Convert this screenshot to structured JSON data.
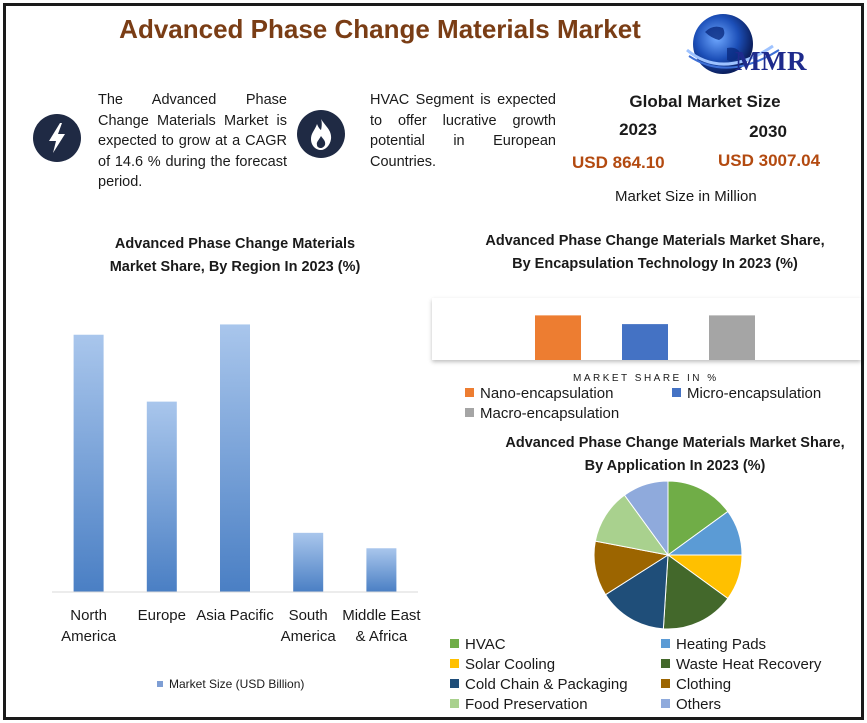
{
  "title": "Advanced Phase Change Materials Market",
  "logo": {
    "text": "MMR"
  },
  "info": {
    "cagr_text": "The Advanced Phase Change Materials Market is expected to grow at a CAGR of 14.6 % during the forecast period.",
    "hvac_text": "HVAC Segment is expected to offer lucrative growth potential in European Countries."
  },
  "global_market": {
    "heading": "Global Market Size",
    "year1": "2023",
    "year2": "2030",
    "value1": "USD 864.10",
    "value2": "USD 3007.04",
    "caption": "Market Size in Million"
  },
  "colors": {
    "title": "#7a3d15",
    "value": "#b34a10",
    "icon_bg": "#1f2a44",
    "region_bar": "#4a7fc4"
  },
  "icons": [
    "lightning-icon",
    "flame-icon",
    "globe-icon"
  ],
  "chart_data": [
    {
      "type": "bar",
      "title": "Advanced Phase Change Materials Market Share, By Region In 2023 (%)",
      "categories": [
        "North America",
        "Europe",
        "Asia Pacific",
        "South America",
        "Middle East & Africa"
      ],
      "values": [
        100,
        74,
        104,
        23,
        17
      ],
      "ylim": [
        0,
        110
      ],
      "legend": "Market Size (USD Billion)",
      "legend_position": "bottom",
      "grid": false
    },
    {
      "type": "bar",
      "title": "Advanced Phase Change Materials Market Share, By Encapsulation Technology In 2023 (%)",
      "xlabel": "MARKET SHARE IN %",
      "categories": [
        "Nano-encapsulation",
        "Micro-encapsulation",
        "Macro-encapsulation"
      ],
      "values": [
        46,
        37,
        46
      ],
      "colors": [
        "#ed7d31",
        "#4472c4",
        "#a5a5a5"
      ],
      "legend_position": "bottom"
    },
    {
      "type": "pie",
      "title": "Advanced Phase Change Materials Market Share, By Application In 2023 (%)",
      "categories": [
        "HVAC",
        "Heating Pads",
        "Solar Cooling",
        "Waste Heat Recovery",
        "Cold Chain & Packaging",
        "Clothing",
        "Food Preservation",
        "Others"
      ],
      "values": [
        15,
        10,
        10,
        16,
        15,
        12,
        12,
        10
      ],
      "colors": [
        "#70ad47",
        "#5b9bd5",
        "#ffc000",
        "#43682b",
        "#1f4e79",
        "#9c6500",
        "#a9d18e",
        "#8faadc"
      ],
      "legend_position": "bottom"
    }
  ]
}
